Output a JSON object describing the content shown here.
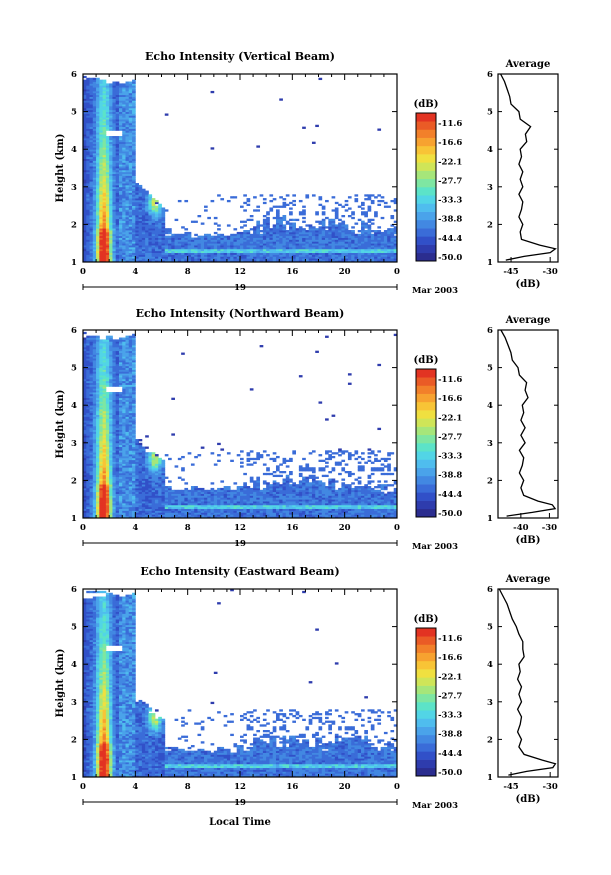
{
  "chart_data": [
    {
      "type": "heatmap",
      "title": "Echo Intensity (Vertical Beam)",
      "ylabel": "Height (km)",
      "xlim": [
        0,
        24
      ],
      "ylim": [
        1,
        6
      ],
      "x_ticks": [
        "0",
        "4",
        "8",
        "12",
        "16",
        "20",
        "0"
      ],
      "y_ticks": [
        "1",
        "2",
        "3",
        "4",
        "5",
        "6"
      ],
      "date_tick": "19",
      "date_label": "Mar 2003",
      "colorbar": {
        "unit": "(dB)",
        "labels": [
          "-11.6",
          "-16.6",
          "-22.1",
          "-27.7",
          "-33.3",
          "-38.8",
          "-44.4",
          "-50.0"
        ]
      },
      "average": {
        "title": "Average",
        "xlabel": "(dB)",
        "x_ticks": [
          "-45",
          "-30"
        ],
        "xlim": [
          -50,
          -27
        ],
        "y_ticks": [
          "1",
          "2",
          "3",
          "4",
          "5",
          "6"
        ],
        "height": [
          1.05,
          1.15,
          1.25,
          1.35,
          1.45,
          1.6,
          1.8,
          2.0,
          2.2,
          2.4,
          2.6,
          2.8,
          3.0,
          3.2,
          3.4,
          3.6,
          3.8,
          4.0,
          4.2,
          4.4,
          4.6,
          4.8,
          5.0,
          5.2,
          5.4,
          5.6,
          5.8,
          6.0
        ],
        "value": [
          -47,
          -40,
          -30,
          -28,
          -34,
          -41,
          -41.5,
          -40.5,
          -42,
          -41,
          -40.5,
          -42,
          -40.5,
          -41.5,
          -40.5,
          -42,
          -41,
          -41.5,
          -39,
          -39.5,
          -37.5,
          -41.5,
          -42,
          -45,
          -45.5,
          -46.5,
          -47.5,
          -49
        ]
      }
    },
    {
      "type": "heatmap",
      "title": "Echo Intensity (Northward Beam)",
      "ylabel": "Height (km)",
      "xlim": [
        0,
        24
      ],
      "ylim": [
        1,
        6
      ],
      "x_ticks": [
        "0",
        "4",
        "8",
        "12",
        "16",
        "20",
        "0"
      ],
      "y_ticks": [
        "1",
        "2",
        "3",
        "4",
        "5",
        "6"
      ],
      "date_tick": "19",
      "date_label": "Mar 2003",
      "colorbar": {
        "unit": "(dB)",
        "labels": [
          "-11.6",
          "-16.6",
          "-22.1",
          "-27.7",
          "-33.3",
          "-38.8",
          "-44.4",
          "-50.0"
        ]
      },
      "average": {
        "title": "Average",
        "xlabel": "(dB)",
        "x_ticks": [
          "-40",
          "-30"
        ],
        "xlim": [
          -48,
          -27
        ],
        "y_ticks": [
          "1",
          "2",
          "3",
          "4",
          "5",
          "6"
        ],
        "height": [
          1.05,
          1.15,
          1.25,
          1.35,
          1.45,
          1.6,
          1.8,
          2.0,
          2.2,
          2.4,
          2.6,
          2.8,
          3.0,
          3.2,
          3.4,
          3.6,
          3.8,
          4.0,
          4.2,
          4.4,
          4.6,
          4.8,
          5.0,
          5.2,
          5.4,
          5.6,
          5.8,
          6.0
        ],
        "value": [
          -45,
          -36,
          -28,
          -29,
          -34,
          -39,
          -40,
          -39,
          -40.5,
          -39.5,
          -39,
          -40.5,
          -38.5,
          -40,
          -38.5,
          -40,
          -39,
          -39.5,
          -37.5,
          -38.5,
          -38,
          -40.5,
          -41,
          -43,
          -43.5,
          -44.5,
          -45.5,
          -47
        ]
      }
    },
    {
      "type": "heatmap",
      "title": "Echo Intensity (Eastward Beam)",
      "ylabel": "Height (km)",
      "xlabel": "Local Time",
      "xlim": [
        0,
        24
      ],
      "ylim": [
        1,
        6
      ],
      "x_ticks": [
        "0",
        "4",
        "8",
        "12",
        "16",
        "20",
        "0"
      ],
      "y_ticks": [
        "1",
        "2",
        "3",
        "4",
        "5",
        "6"
      ],
      "date_tick": "19",
      "date_label": "Mar 2003",
      "colorbar": {
        "unit": "(dB)",
        "labels": [
          "-11.6",
          "-16.6",
          "-22.1",
          "-27.7",
          "-33.3",
          "-38.8",
          "-44.4",
          "-50.0"
        ]
      },
      "average": {
        "title": "Average",
        "xlabel": "(dB)",
        "x_ticks": [
          "-45",
          "-30"
        ],
        "xlim": [
          -50,
          -27
        ],
        "y_ticks": [
          "1",
          "2",
          "3",
          "4",
          "5",
          "6"
        ],
        "height": [
          1.05,
          1.15,
          1.25,
          1.35,
          1.45,
          1.6,
          1.8,
          2.0,
          2.2,
          2.4,
          2.6,
          2.8,
          3.0,
          3.2,
          3.4,
          3.6,
          3.8,
          4.0,
          4.2,
          4.4,
          4.6,
          4.8,
          5.0,
          5.2,
          5.4,
          5.6,
          5.8,
          6.0
        ],
        "value": [
          -46,
          -39,
          -29,
          -28,
          -33,
          -40,
          -42,
          -41,
          -42.5,
          -41.5,
          -41,
          -42.5,
          -41,
          -42,
          -41,
          -42.5,
          -41.5,
          -42,
          -40,
          -40.5,
          -40.5,
          -42,
          -43,
          -44.5,
          -45.5,
          -46.5,
          -48,
          -49.5
        ]
      }
    }
  ]
}
